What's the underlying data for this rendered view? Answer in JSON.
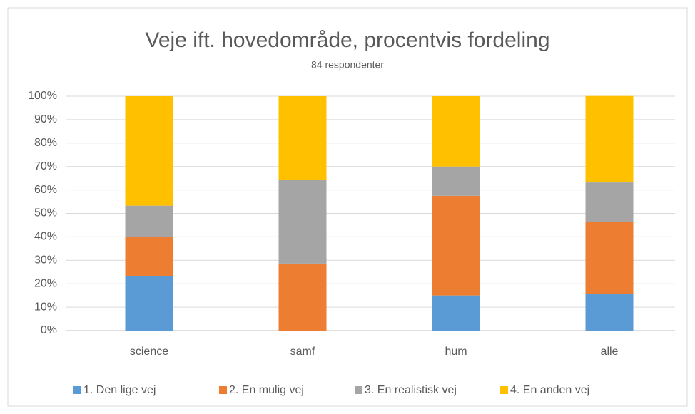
{
  "chart_data": {
    "type": "stacked_bar",
    "title": "Veje ift. hovedområde, procentvis fordeling",
    "subtitle": "84 respondenter",
    "categories": [
      "science",
      "samf",
      "hum",
      "alle"
    ],
    "series": [
      {
        "name": "1. Den lige vej",
        "color": "#5b9bd5",
        "values": [
          23.3,
          0,
          15,
          15.5
        ]
      },
      {
        "name": "2. En mulig vej",
        "color": "#ed7d31",
        "values": [
          16.7,
          28.6,
          42.5,
          31
        ]
      },
      {
        "name": "3. En realistisk vej",
        "color": "#a5a5a5",
        "values": [
          13.3,
          35.7,
          12.5,
          16.7
        ]
      },
      {
        "name": "4. En anden vej",
        "color": "#ffc000",
        "values": [
          46.7,
          35.7,
          30,
          36.9
        ]
      }
    ],
    "ylim": [
      0,
      100
    ],
    "yticks": [
      {
        "value": 0,
        "label": "0%"
      },
      {
        "value": 10,
        "label": "10%"
      },
      {
        "value": 20,
        "label": "20%"
      },
      {
        "value": 30,
        "label": "30%"
      },
      {
        "value": 40,
        "label": "40%"
      },
      {
        "value": 50,
        "label": "50%"
      },
      {
        "value": 60,
        "label": "60%"
      },
      {
        "value": 70,
        "label": "70%"
      },
      {
        "value": 80,
        "label": "80%"
      },
      {
        "value": 90,
        "label": "90%"
      },
      {
        "value": 100,
        "label": "100%"
      }
    ],
    "grid": true,
    "legend": "bottom"
  }
}
